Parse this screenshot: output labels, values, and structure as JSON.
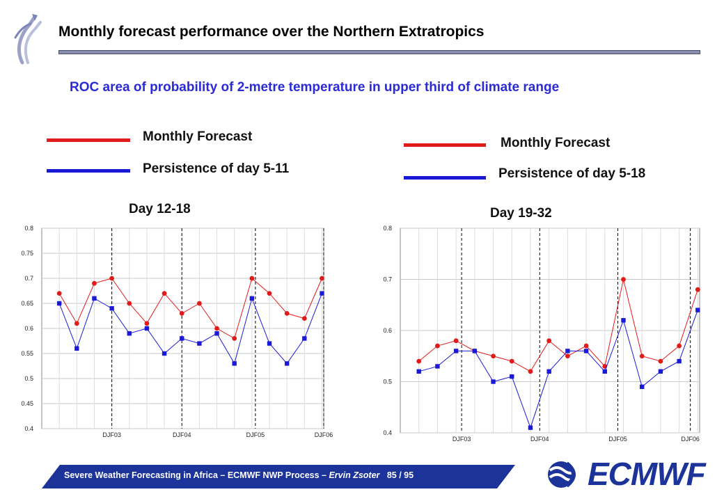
{
  "header": {
    "title": "Monthly forecast performance over the Northern Extratropics",
    "subtitle": "ROC area of probability of 2-metre temperature in upper third of climate range"
  },
  "legend_left": {
    "forecast": "Monthly Forecast",
    "persistence": "Persistence of day 5-11"
  },
  "legend_right": {
    "forecast": "Monthly Forecast",
    "persistence": "Persistence of day 5-18"
  },
  "footer": {
    "text": "Severe Weather Forecasting in Africa – ECMWF NWP Process –",
    "author": "Ervin Zsoter",
    "page": "85 / 95"
  },
  "logo": {
    "text": "ECMWF"
  },
  "colors": {
    "forecast": "#e01b1b",
    "persistence": "#1a1ad6",
    "brand": "#1c3399"
  },
  "chart_data": [
    {
      "type": "line",
      "title": "Day 12-18",
      "x": [
        1,
        2,
        3,
        4,
        5,
        6,
        7,
        8,
        9,
        10,
        11,
        12,
        13,
        14,
        15,
        16
      ],
      "ylim": [
        0.4,
        0.8
      ],
      "xlim": [
        0,
        16.1
      ],
      "yticks": [
        0.4,
        0.45,
        0.5,
        0.55,
        0.6,
        0.65,
        0.7,
        0.75,
        0.8
      ],
      "ytick_labels": [
        "0.4",
        "0.45",
        "0.5",
        "0.55",
        "0.6",
        "0.65",
        "0.7",
        "0.75",
        "0.8"
      ],
      "season_markers": [
        {
          "x": 4,
          "label": "DJF03"
        },
        {
          "x": 8,
          "label": "DJF04"
        },
        {
          "x": 12.2,
          "label": "DJF05"
        },
        {
          "x": 16.1,
          "label": "DJF06"
        }
      ],
      "grid": true,
      "series": [
        {
          "name": "Monthly Forecast",
          "values": [
            0.67,
            0.61,
            0.69,
            0.7,
            0.65,
            0.61,
            0.67,
            0.63,
            0.65,
            0.6,
            0.58,
            0.7,
            0.67,
            0.63,
            0.62,
            0.7
          ]
        },
        {
          "name": "Persistence of day 5-11",
          "values": [
            0.65,
            0.56,
            0.66,
            0.64,
            0.59,
            0.6,
            0.55,
            0.58,
            0.57,
            0.59,
            0.53,
            0.66,
            0.57,
            0.53,
            0.58,
            0.67
          ]
        }
      ]
    },
    {
      "type": "line",
      "title": "Day 19-32",
      "x": [
        1,
        2,
        3,
        4,
        5,
        6,
        7,
        8,
        9,
        10,
        11,
        12,
        13,
        14,
        15,
        16
      ],
      "ylim": [
        0.4,
        0.8
      ],
      "xlim": [
        0,
        16.1
      ],
      "yticks": [
        0.4,
        0.5,
        0.6,
        0.7,
        0.8
      ],
      "ytick_labels": [
        "0.4",
        "0.5",
        "0.6",
        "0.7",
        "0.8"
      ],
      "season_markers": [
        {
          "x": 3.3,
          "label": "DJF03"
        },
        {
          "x": 7.5,
          "label": "DJF04"
        },
        {
          "x": 11.7,
          "label": "DJF05"
        },
        {
          "x": 15.6,
          "label": "DJF06"
        }
      ],
      "grid": true,
      "series": [
        {
          "name": "Monthly Forecast",
          "values": [
            0.54,
            0.57,
            0.58,
            0.56,
            0.55,
            0.54,
            0.52,
            0.58,
            0.55,
            0.57,
            0.53,
            0.7,
            0.55,
            0.54,
            0.57,
            0.68
          ],
          "x": [
            1,
            2,
            3,
            4,
            5,
            6,
            7,
            8,
            9,
            10,
            11,
            12,
            13,
            14,
            15,
            16
          ]
        },
        {
          "name": "Persistence of day 5-18",
          "values": [
            0.52,
            0.53,
            0.56,
            0.56,
            0.5,
            0.51,
            0.41,
            0.52,
            0.56,
            0.56,
            0.52,
            0.62,
            0.49,
            0.52,
            0.54,
            0.64
          ],
          "x": [
            1,
            2,
            3,
            4,
            5,
            6,
            7,
            8,
            9,
            10,
            11,
            12,
            13,
            14,
            15,
            16
          ]
        }
      ]
    }
  ]
}
